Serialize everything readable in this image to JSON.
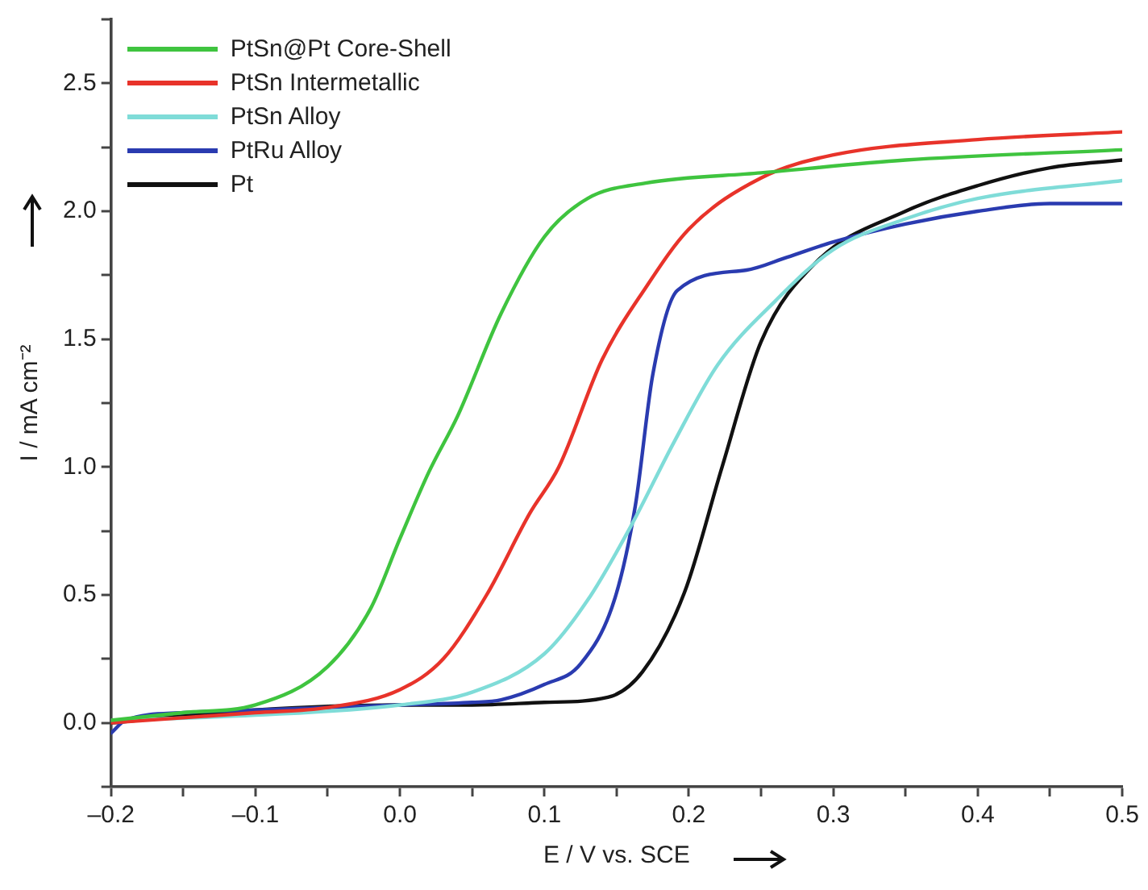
{
  "chart_data": {
    "type": "line",
    "xlabel": "E / V vs. SCE",
    "ylabel": "I / mA cm⁻²",
    "legend": "top left",
    "grid": false,
    "marker": "none",
    "line_style": "solid",
    "xlim": [
      -0.2,
      0.5
    ],
    "ylim": [
      -0.25,
      2.75
    ],
    "xticks": [
      {
        "value": -0.2,
        "label": "–0.2"
      },
      {
        "value": -0.15,
        "label": null
      },
      {
        "value": -0.1,
        "label": "–0.1"
      },
      {
        "value": -0.05,
        "label": null
      },
      {
        "value": 0,
        "label": "0.0"
      },
      {
        "value": 0.05,
        "label": null
      },
      {
        "value": 0.1,
        "label": "0.1"
      },
      {
        "value": 0.15,
        "label": null
      },
      {
        "value": 0.2,
        "label": "0.2"
      },
      {
        "value": 0.25,
        "label": null
      },
      {
        "value": 0.3,
        "label": "0.3"
      },
      {
        "value": 0.35,
        "label": null
      },
      {
        "value": 0.4,
        "label": "0.4"
      },
      {
        "value": 0.45,
        "label": null
      },
      {
        "value": 0.5,
        "label": "0.5"
      }
    ],
    "yticks": [
      {
        "value": -0.25,
        "label": null
      },
      {
        "value": 0,
        "label": "0.0"
      },
      {
        "value": 0.25,
        "label": null
      },
      {
        "value": 0.5,
        "label": "0.5"
      },
      {
        "value": 0.75,
        "label": null
      },
      {
        "value": 1,
        "label": "1.0"
      },
      {
        "value": 1.25,
        "label": null
      },
      {
        "value": 1.5,
        "label": "1.5"
      },
      {
        "value": 1.75,
        "label": null
      },
      {
        "value": 2,
        "label": "2.0"
      },
      {
        "value": 2.25,
        "label": null
      },
      {
        "value": 2.5,
        "label": "2.5"
      },
      {
        "value": 2.75,
        "label": null
      }
    ],
    "series": [
      {
        "name": "PtSn@Pt Core-Shell",
        "color": "#3fc43f",
        "x": [
          -0.2,
          -0.15,
          -0.1,
          -0.05,
          -0.02,
          0,
          0.02,
          0.04,
          0.07,
          0.1,
          0.13,
          0.17,
          0.25,
          0.35,
          0.5
        ],
        "values": [
          0.01,
          0.04,
          0.07,
          0.22,
          0.45,
          0.72,
          0.98,
          1.2,
          1.6,
          1.9,
          2.05,
          2.11,
          2.15,
          2.2,
          2.24
        ]
      },
      {
        "name": "PtSn Intermetallic",
        "color": "#e8332a",
        "x": [
          -0.2,
          -0.1,
          -0.05,
          0,
          0.03,
          0.06,
          0.09,
          0.11,
          0.14,
          0.17,
          0.2,
          0.25,
          0.3,
          0.4,
          0.5
        ],
        "values": [
          0.0,
          0.04,
          0.06,
          0.13,
          0.25,
          0.5,
          0.82,
          1.0,
          1.42,
          1.7,
          1.93,
          2.13,
          2.22,
          2.28,
          2.31
        ]
      },
      {
        "name": "PtSn Alloy",
        "color": "#7fdcd8",
        "x": [
          -0.2,
          -0.1,
          0,
          0.05,
          0.1,
          0.13,
          0.16,
          0.19,
          0.22,
          0.26,
          0.3,
          0.35,
          0.4,
          0.5
        ],
        "values": [
          0.01,
          0.03,
          0.07,
          0.12,
          0.27,
          0.48,
          0.77,
          1.1,
          1.4,
          1.65,
          1.85,
          1.97,
          2.05,
          2.12
        ]
      },
      {
        "name": "PtRu Alloy",
        "color": "#2a3bb0",
        "x": [
          -0.2,
          -0.19,
          -0.15,
          -0.1,
          -0.05,
          0,
          0.05,
          0.07,
          0.1,
          0.125,
          0.149,
          0.163,
          0.175,
          0.192,
          0.24,
          0.268,
          0.3,
          0.35,
          0.4,
          0.45,
          0.5
        ],
        "values": [
          -0.04,
          0.01,
          0.04,
          0.05,
          0.06,
          0.07,
          0.08,
          0.09,
          0.15,
          0.23,
          0.49,
          0.85,
          1.36,
          1.69,
          1.77,
          1.82,
          1.88,
          1.95,
          2.0,
          2.03,
          2.03
        ]
      },
      {
        "name": "Pt",
        "color": "#111111",
        "x": [
          -0.2,
          -0.1,
          0,
          0.05,
          0.1,
          0.144,
          0.168,
          0.197,
          0.223,
          0.25,
          0.288,
          0.35,
          0.4,
          0.45,
          0.5
        ],
        "values": [
          0.0,
          0.05,
          0.07,
          0.07,
          0.08,
          0.1,
          0.2,
          0.51,
          1.0,
          1.49,
          1.8,
          2.0,
          2.1,
          2.17,
          2.2
        ]
      }
    ]
  }
}
